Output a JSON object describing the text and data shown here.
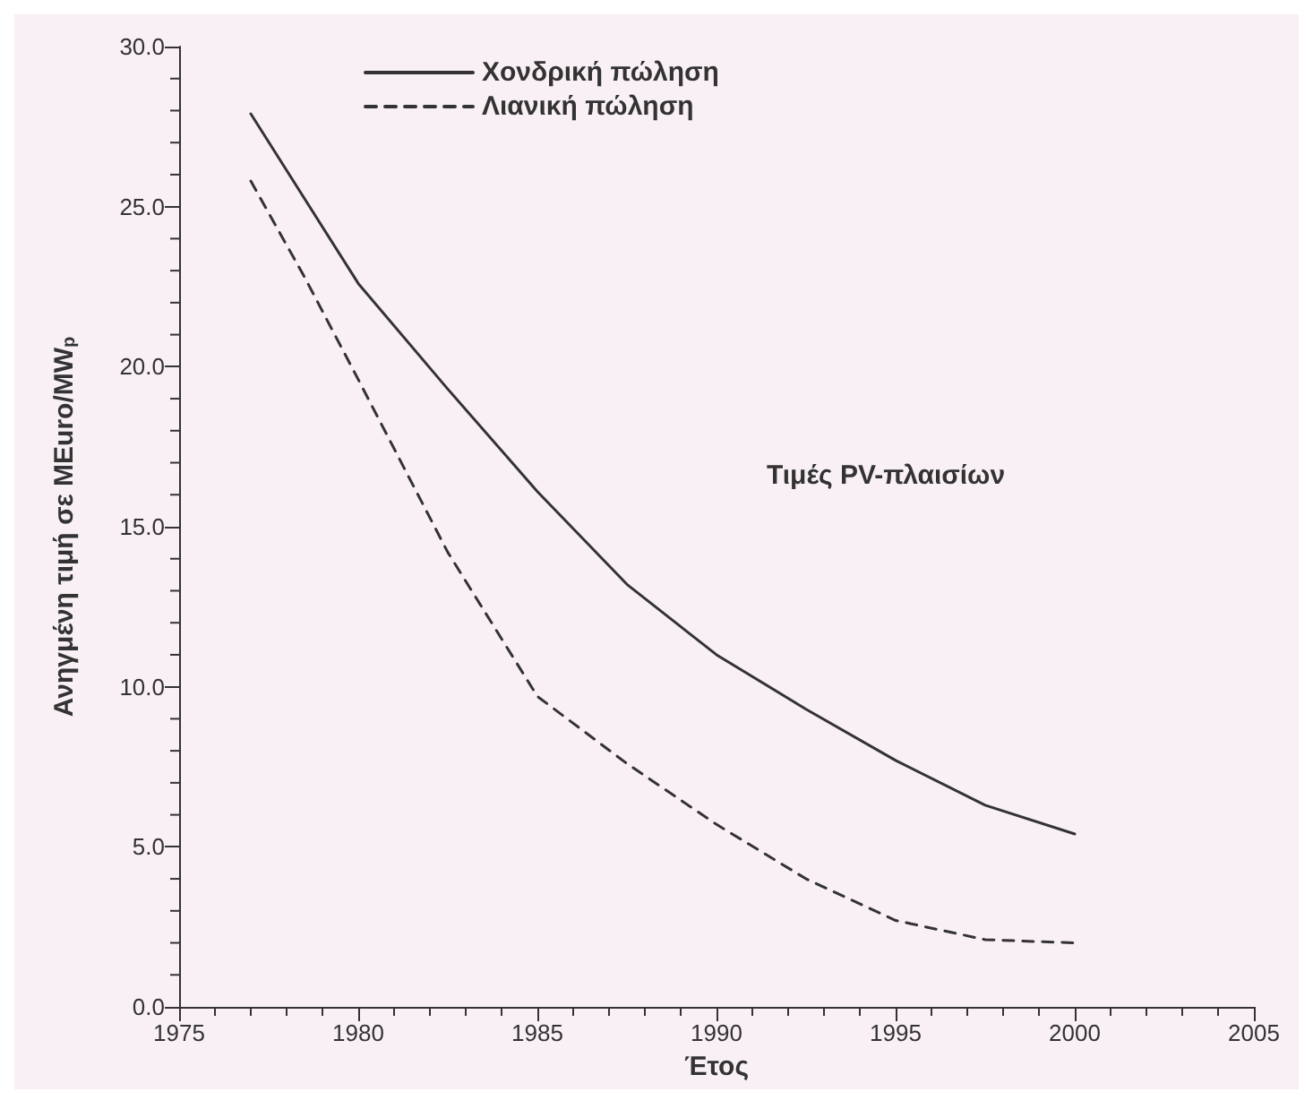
{
  "chart_data": {
    "type": "line",
    "xlabel": "Έτος",
    "ylabel": "Ανηγμένη τιμή σε MEuro/MW$_{p}$",
    "annotations": [
      "Τιμές PV-πλαισίων"
    ],
    "xlim": [
      1975,
      2005
    ],
    "xticks": [
      1975,
      1980,
      1985,
      1990,
      1995,
      2000,
      2005
    ],
    "ylim": [
      0,
      30
    ],
    "yticks": [
      {
        "value": 0,
        "label": "0.0"
      },
      {
        "value": 5,
        "label": "5.0"
      },
      {
        "value": 10,
        "label": "10.0"
      },
      {
        "value": 15,
        "label": "15.0"
      },
      {
        "value": 20,
        "label": "20.0"
      },
      {
        "value": 25,
        "label": "25.0"
      },
      {
        "value": 30,
        "label": "30.0"
      }
    ],
    "grid": false,
    "legend": "top",
    "marker": "none",
    "series": [
      {
        "name": "Χονδρική πώληση",
        "color": "#333333",
        "line_style": "solid",
        "x": [
          1977,
          1980,
          1982.5,
          1985,
          1987.5,
          1990,
          1992.5,
          1995,
          1997.5,
          2000
        ],
        "values": [
          27.9,
          22.6,
          19.3,
          16.1,
          13.2,
          11.0,
          9.3,
          7.7,
          6.3,
          5.4
        ]
      },
      {
        "name": "Λιανική πώληση",
        "color": "#333333",
        "line_style": "dashed",
        "x": [
          1977,
          1978.5,
          1980,
          1982.5,
          1985,
          1987.5,
          1990,
          1992.5,
          1995,
          1997.5,
          2000
        ],
        "values": [
          25.8,
          22.8,
          19.6,
          14.2,
          9.7,
          7.6,
          5.7,
          4.0,
          2.7,
          2.1,
          2.0
        ]
      }
    ]
  }
}
